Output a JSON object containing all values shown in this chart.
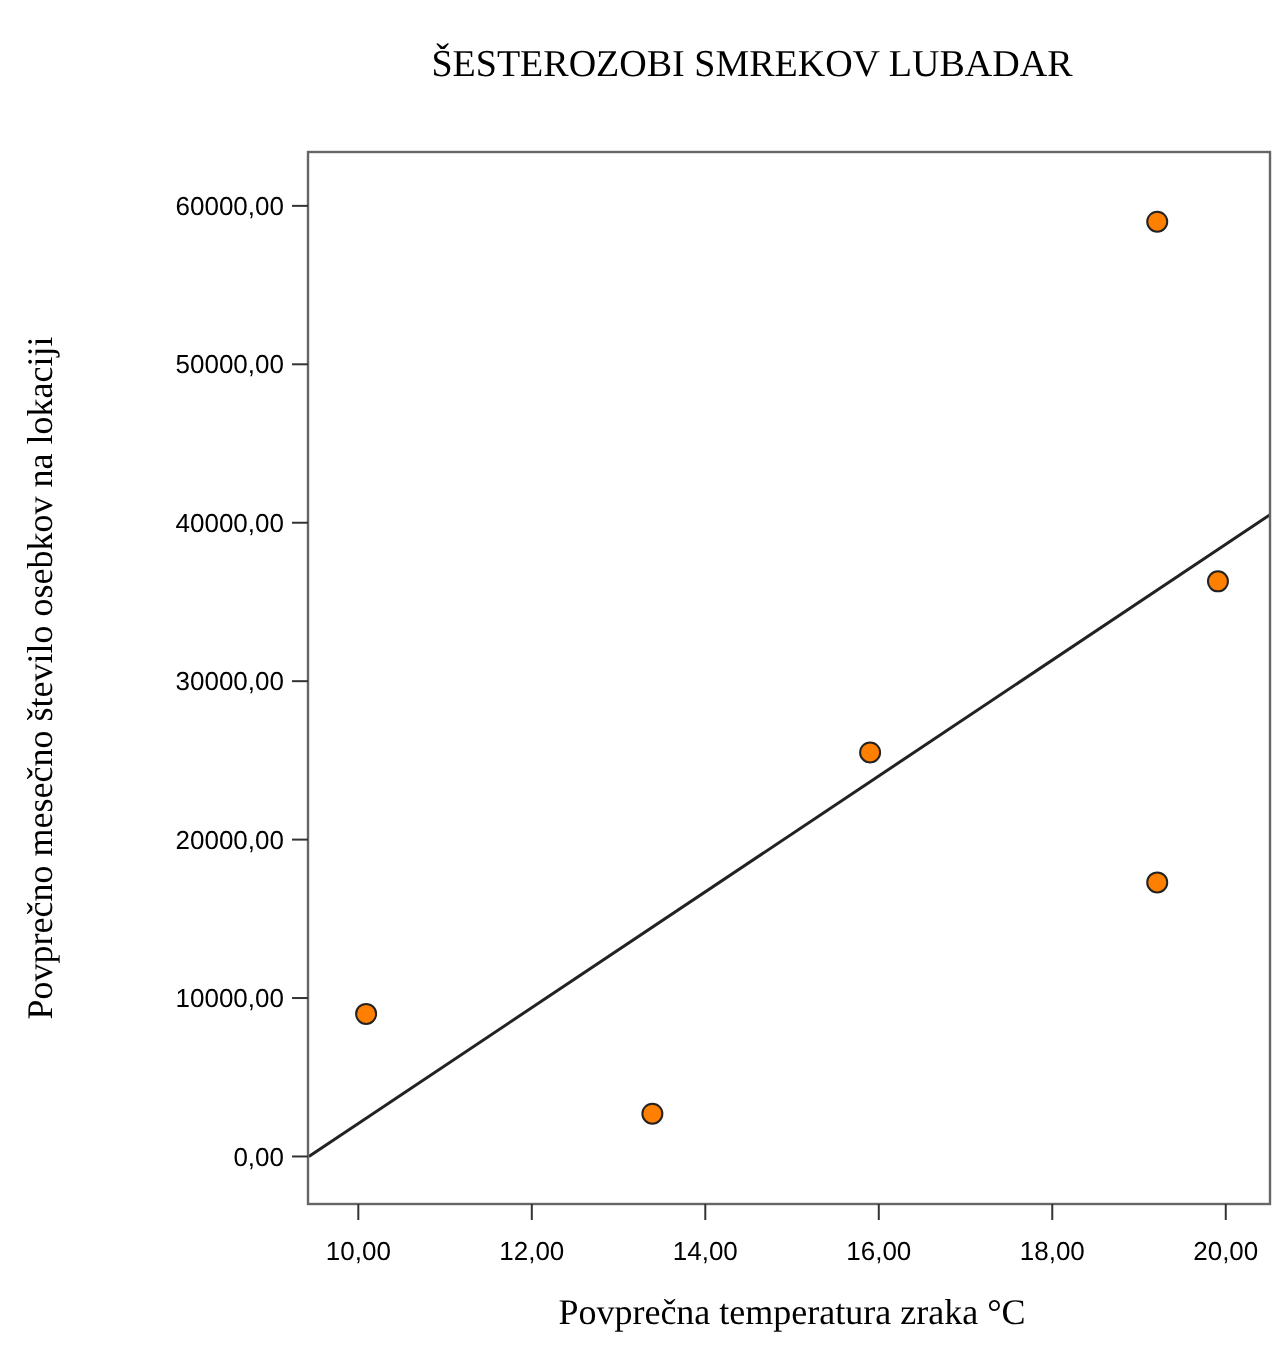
{
  "chart_data": {
    "type": "scatter",
    "title": "ŠESTEROZOBI SMREKOV LUBADAR",
    "xlabel": "Povprečna temperatura zraka °C",
    "ylabel": "Povprečno mesečno število osebkov na lokaciji",
    "series": [
      {
        "color": "#ff7f00",
        "marker": "circle",
        "x": [
          10.09,
          13.39,
          15.9,
          19.21,
          19.21,
          19.91
        ],
        "values": [
          9000,
          2700,
          25500,
          59000,
          17300,
          36300
        ]
      },
      {
        "type": "line",
        "color": "#222222",
        "marker": "none",
        "line_style": "solid",
        "x": [
          9.43,
          20.51
        ],
        "values": [
          0,
          40500
        ]
      }
    ],
    "xlim": [
      9.42,
      20.51
    ],
    "ylim": [
      -3000,
      63400
    ],
    "xticks": [
      {
        "value": 10,
        "label": "10,00"
      },
      {
        "value": 12,
        "label": "12,00"
      },
      {
        "value": 14,
        "label": "14,00"
      },
      {
        "value": 16,
        "label": "16,00"
      },
      {
        "value": 18,
        "label": "18,00"
      },
      {
        "value": 20,
        "label": "20,00"
      }
    ],
    "yticks": [
      {
        "value": 0,
        "label": "0,00"
      },
      {
        "value": 10000,
        "label": "10000,00"
      },
      {
        "value": 20000,
        "label": "20000,00"
      },
      {
        "value": 30000,
        "label": "30000,00"
      },
      {
        "value": 40000,
        "label": "40000,00"
      },
      {
        "value": 50000,
        "label": "50000,00"
      },
      {
        "value": 60000,
        "label": "60000,00"
      }
    ]
  }
}
